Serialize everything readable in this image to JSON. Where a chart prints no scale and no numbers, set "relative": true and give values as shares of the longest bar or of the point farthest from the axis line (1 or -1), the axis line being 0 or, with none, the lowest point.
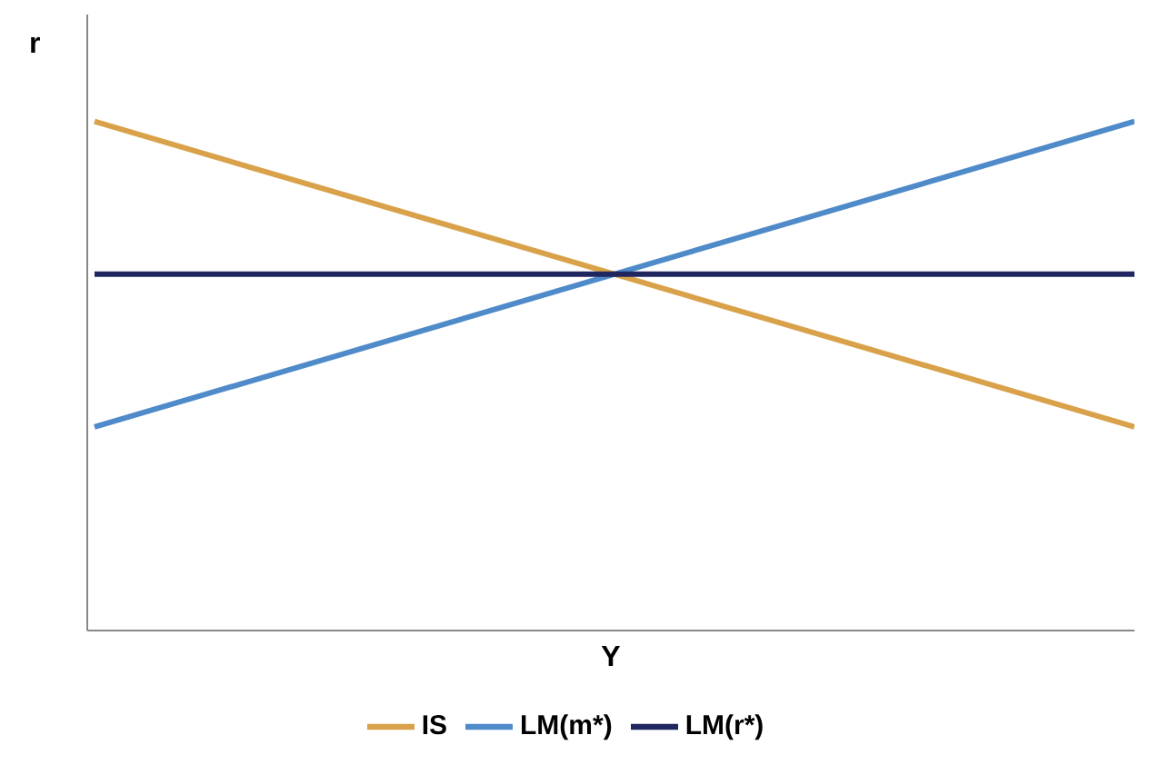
{
  "chart_data": {
    "type": "line",
    "relative": true,
    "xlabel": "Y",
    "ylabel": "r",
    "categories": [
      null,
      null
    ],
    "series": [
      {
        "name": "IS",
        "color": "#d9a24a",
        "values": [
          1,
          0.4
        ]
      },
      {
        "name": "LM(m*)",
        "color": "#4f8ac9",
        "values": [
          0.4,
          1
        ]
      },
      {
        "name": "LM(r*)",
        "color": "#1f2660",
        "values": [
          0.7,
          0.7
        ]
      }
    ],
    "legend": "bottom",
    "grid": false,
    "marker": "none",
    "line_style": "solid"
  }
}
